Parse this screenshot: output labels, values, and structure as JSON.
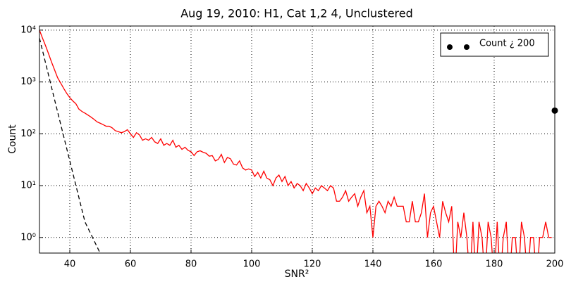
{
  "chart_data": {
    "type": "line",
    "title": "Aug 19, 2010: H1, Cat 1,2  4, Unclustered",
    "xlabel": "SNR²",
    "ylabel": "Count",
    "xlim": [
      30,
      200
    ],
    "xticks": [
      40,
      60,
      80,
      100,
      120,
      140,
      160,
      180,
      200
    ],
    "ylim": [
      0.5,
      12000
    ],
    "log_y": true,
    "yticks": [
      {
        "value": 1,
        "label": "10⁰"
      },
      {
        "value": 10,
        "label": "10¹"
      },
      {
        "value": 100,
        "label": "10²"
      },
      {
        "value": 1000,
        "label": "10³"
      },
      {
        "value": 10000,
        "label": "10⁴"
      }
    ],
    "grid": true,
    "legend": "upper right",
    "series": [
      {
        "type": "line",
        "color": "#ff0000",
        "x": [
          30,
          31,
          32,
          33,
          34,
          35,
          36,
          37,
          38,
          39,
          40,
          41,
          42,
          43,
          44,
          45,
          46,
          47,
          48,
          49,
          50,
          51,
          52,
          53,
          54,
          55,
          56,
          57,
          58,
          59,
          60,
          61,
          62,
          63,
          64,
          65,
          66,
          67,
          68,
          69,
          70,
          71,
          72,
          73,
          74,
          75,
          76,
          77,
          78,
          79,
          80,
          81,
          82,
          83,
          84,
          85,
          86,
          87,
          88,
          89,
          90,
          91,
          92,
          93,
          94,
          95,
          96,
          97,
          98,
          99,
          100,
          101,
          102,
          103,
          104,
          105,
          106,
          107,
          108,
          109,
          110,
          111,
          112,
          113,
          114,
          115,
          116,
          117,
          118,
          119,
          120,
          121,
          122,
          123,
          124,
          125,
          126,
          127,
          128,
          129,
          130,
          131,
          132,
          133,
          134,
          135,
          136,
          137,
          138,
          139,
          140,
          141,
          142,
          143,
          144,
          145,
          146,
          147,
          148,
          149,
          150,
          151,
          152,
          153,
          154,
          155,
          156,
          157,
          158,
          159,
          160,
          161,
          162,
          163,
          164,
          165,
          166,
          167,
          168,
          169,
          170,
          171,
          172,
          173,
          174,
          175,
          176,
          177,
          178,
          179,
          180,
          181,
          182,
          183,
          184,
          185,
          186,
          187,
          188,
          189,
          190,
          191,
          192,
          193,
          194,
          195,
          196,
          197,
          198,
          199
        ],
        "values": [
          10000,
          7000,
          5000,
          3500,
          2400,
          1700,
          1200,
          950,
          750,
          600,
          500,
          430,
          380,
          300,
          270,
          250,
          230,
          210,
          190,
          170,
          160,
          150,
          140,
          140,
          130,
          115,
          110,
          105,
          110,
          120,
          100,
          85,
          105,
          95,
          75,
          80,
          75,
          85,
          70,
          65,
          80,
          60,
          65,
          60,
          75,
          55,
          60,
          50,
          55,
          48,
          45,
          38,
          45,
          47,
          44,
          42,
          37,
          38,
          30,
          32,
          40,
          28,
          35,
          33,
          26,
          25,
          30,
          22,
          20,
          21,
          20,
          15,
          18,
          14,
          19,
          14,
          13,
          10,
          14,
          16,
          12,
          15,
          10,
          12,
          9,
          11,
          10,
          8,
          11,
          9,
          7,
          9,
          8,
          10,
          9,
          8,
          10,
          9,
          5,
          5,
          6,
          8,
          5,
          6,
          7,
          4,
          6,
          8,
          3,
          4,
          1,
          4,
          5,
          4,
          3,
          5,
          4,
          6,
          4,
          4,
          4,
          2,
          2,
          5,
          2,
          2,
          3,
          7,
          1,
          3,
          4,
          2,
          1,
          5,
          3,
          2,
          4,
          0,
          2,
          1,
          3,
          1,
          0,
          2,
          0,
          2,
          1,
          0,
          2,
          1,
          0,
          2,
          0,
          1,
          2,
          0,
          1,
          1,
          0,
          2,
          1,
          0,
          1,
          1,
          0,
          1,
          1,
          2,
          1,
          1
        ]
      },
      {
        "type": "line",
        "color": "#000000",
        "dash": true,
        "x": [
          30,
          35,
          40,
          45,
          50
        ],
        "values": [
          7000,
          450,
          30,
          2,
          0.5
        ]
      },
      {
        "type": "scatter",
        "name": "Count ¿ 200",
        "color": "#000000",
        "x": [
          200
        ],
        "values": [
          280
        ]
      }
    ]
  }
}
